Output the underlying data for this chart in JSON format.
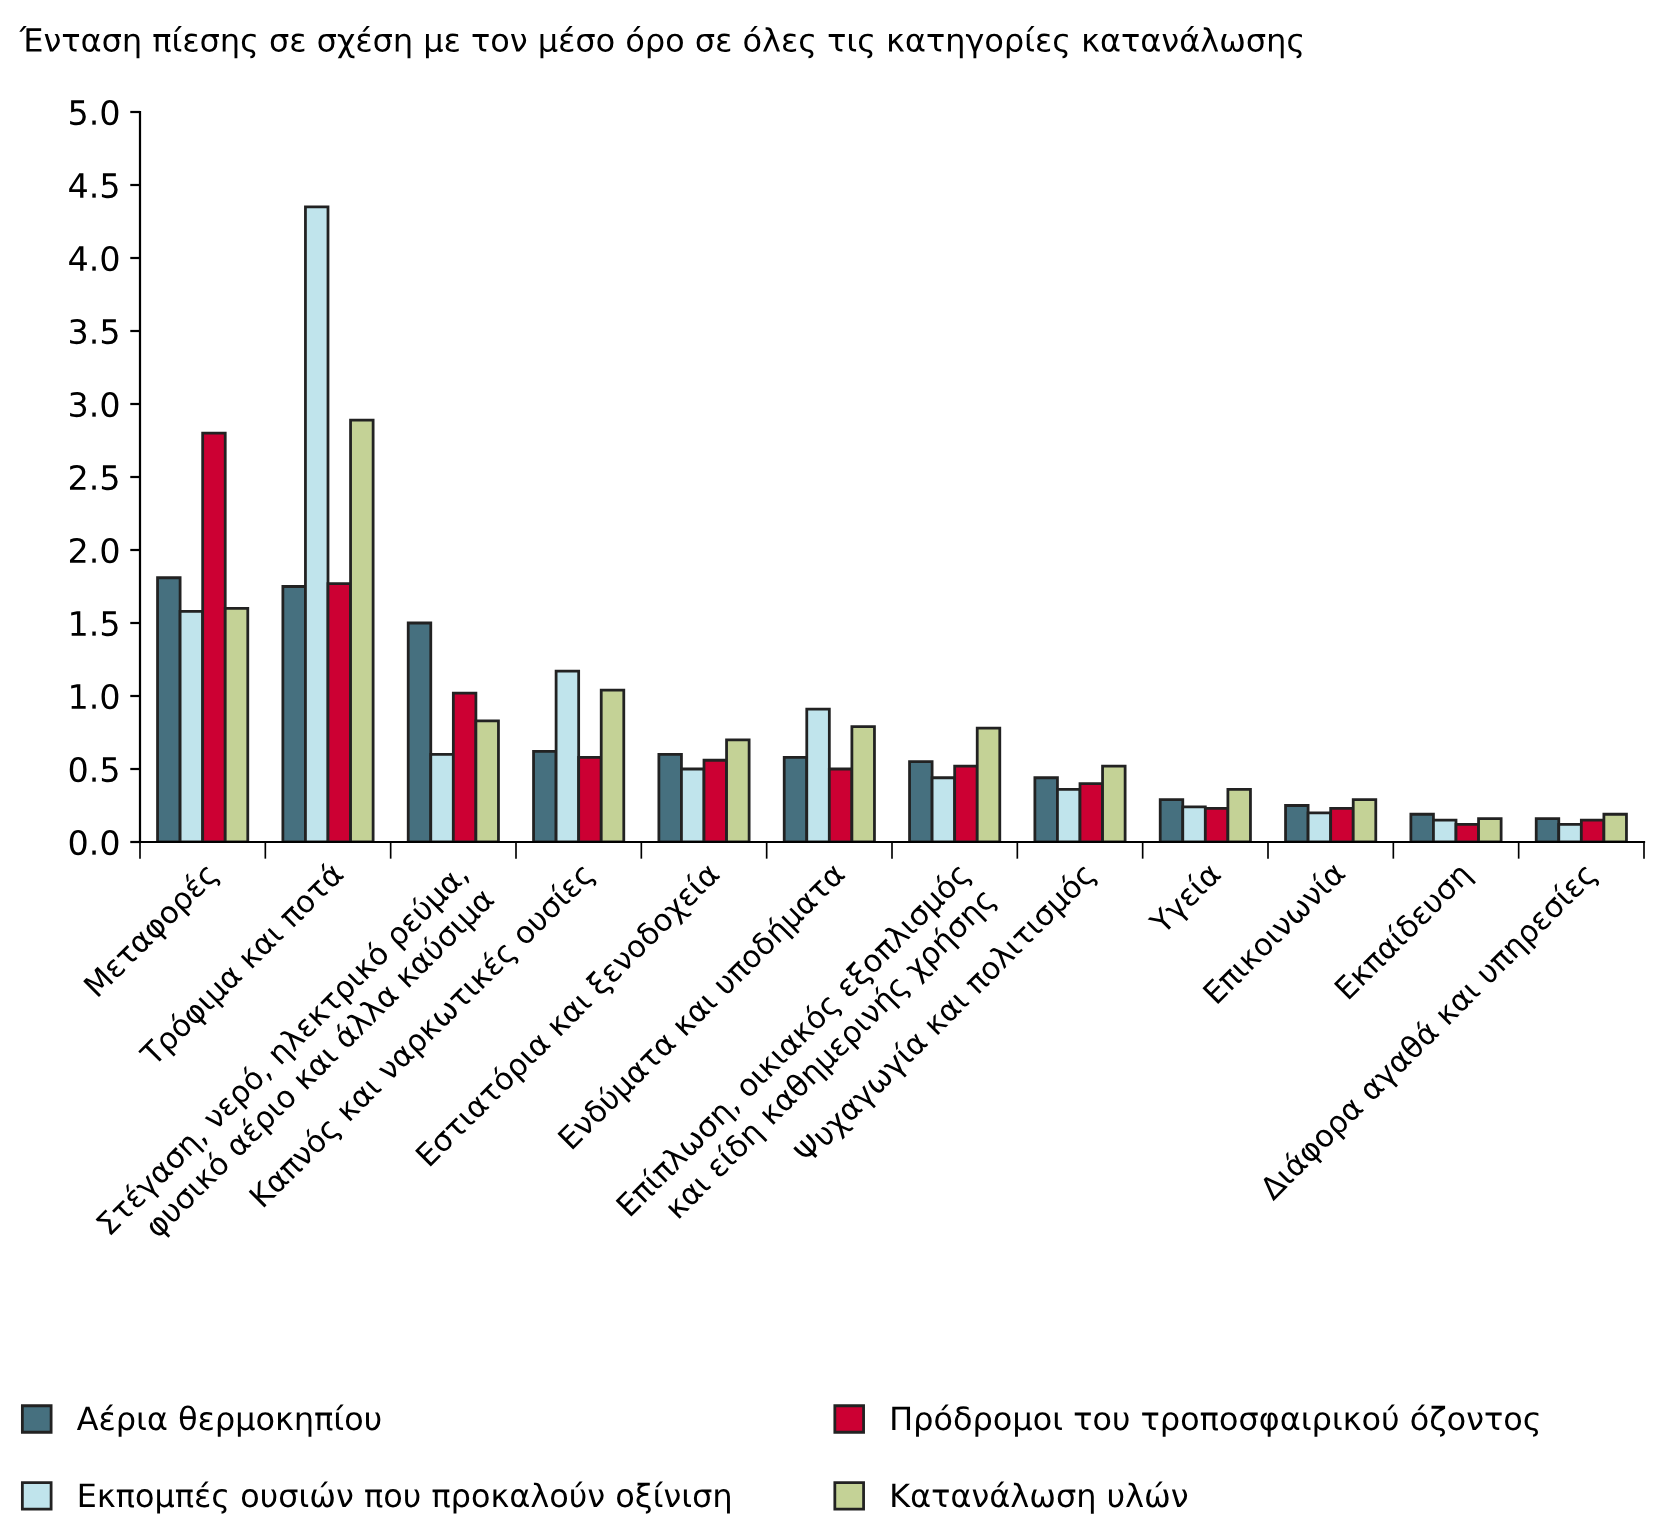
{
  "chart_data": {
    "type": "bar",
    "title": "Ένταση πίεσης σε σχέση με τον μέσο όρο σε όλες τις κατηγορίες κατανάλωσης",
    "categories": [
      "Μεταφορές",
      "Τρόφιμα και ποτά",
      "Στέγαση, νερό, ηλεκτρικό ρεύμα,\nφυσικό αέριο και άλλα καύσιμα",
      "Καπνός και ναρκωτικές ουσίες",
      "Εστιατόρια και ξενοδοχεία",
      "Ενδύματα και υποδήματα",
      "Επίπλωση, οικιακός εξοπλισμός\nκαι είδη καθημερινής χρήσης",
      "Ψυχαγωγία και πολιτισμός",
      "Υγεία",
      "Επικοινωνία",
      "Εκπαίδευση",
      "Διάφορα αγαθά και υπηρεσίες"
    ],
    "series": [
      {
        "name": "Αέρια θερμοκηπίου",
        "color": "#46707f",
        "values": [
          1.81,
          1.75,
          1.5,
          0.62,
          0.6,
          0.58,
          0.55,
          0.44,
          0.29,
          0.25,
          0.19,
          0.16
        ]
      },
      {
        "name": "Εκπομπές ουσιών που προκαλούν οξίνιση",
        "color": "#c0e4ec",
        "values": [
          1.58,
          4.35,
          0.6,
          1.17,
          0.5,
          0.91,
          0.44,
          0.36,
          0.24,
          0.2,
          0.15,
          0.12
        ]
      },
      {
        "name": "Πρόδρομοι του τροποσφαιρικού όζοντος",
        "color": "#cc0033",
        "values": [
          2.8,
          1.77,
          1.02,
          0.58,
          0.56,
          0.5,
          0.52,
          0.4,
          0.23,
          0.23,
          0.12,
          0.15
        ]
      },
      {
        "name": "Κατανάλωση υλών",
        "color": "#c4d296",
        "values": [
          1.6,
          2.89,
          0.83,
          1.04,
          0.7,
          0.79,
          0.78,
          0.52,
          0.36,
          0.29,
          0.16,
          0.19
        ]
      }
    ],
    "ylim": [
      0,
      5
    ],
    "yticks": [
      {
        "value": 0,
        "label": "0.0"
      },
      {
        "value": 0.5,
        "label": "0.5"
      },
      {
        "value": 1,
        "label": "1.0"
      },
      {
        "value": 1.5,
        "label": "1.5"
      },
      {
        "value": 2,
        "label": "2.0"
      },
      {
        "value": 2.5,
        "label": "2.5"
      },
      {
        "value": 3,
        "label": "3.0"
      },
      {
        "value": 3.5,
        "label": "3.5"
      },
      {
        "value": 4,
        "label": "4.0"
      },
      {
        "value": 4.5,
        "label": "4.5"
      },
      {
        "value": 5,
        "label": "5.0"
      }
    ],
    "grid": false,
    "legend": "bottom"
  }
}
